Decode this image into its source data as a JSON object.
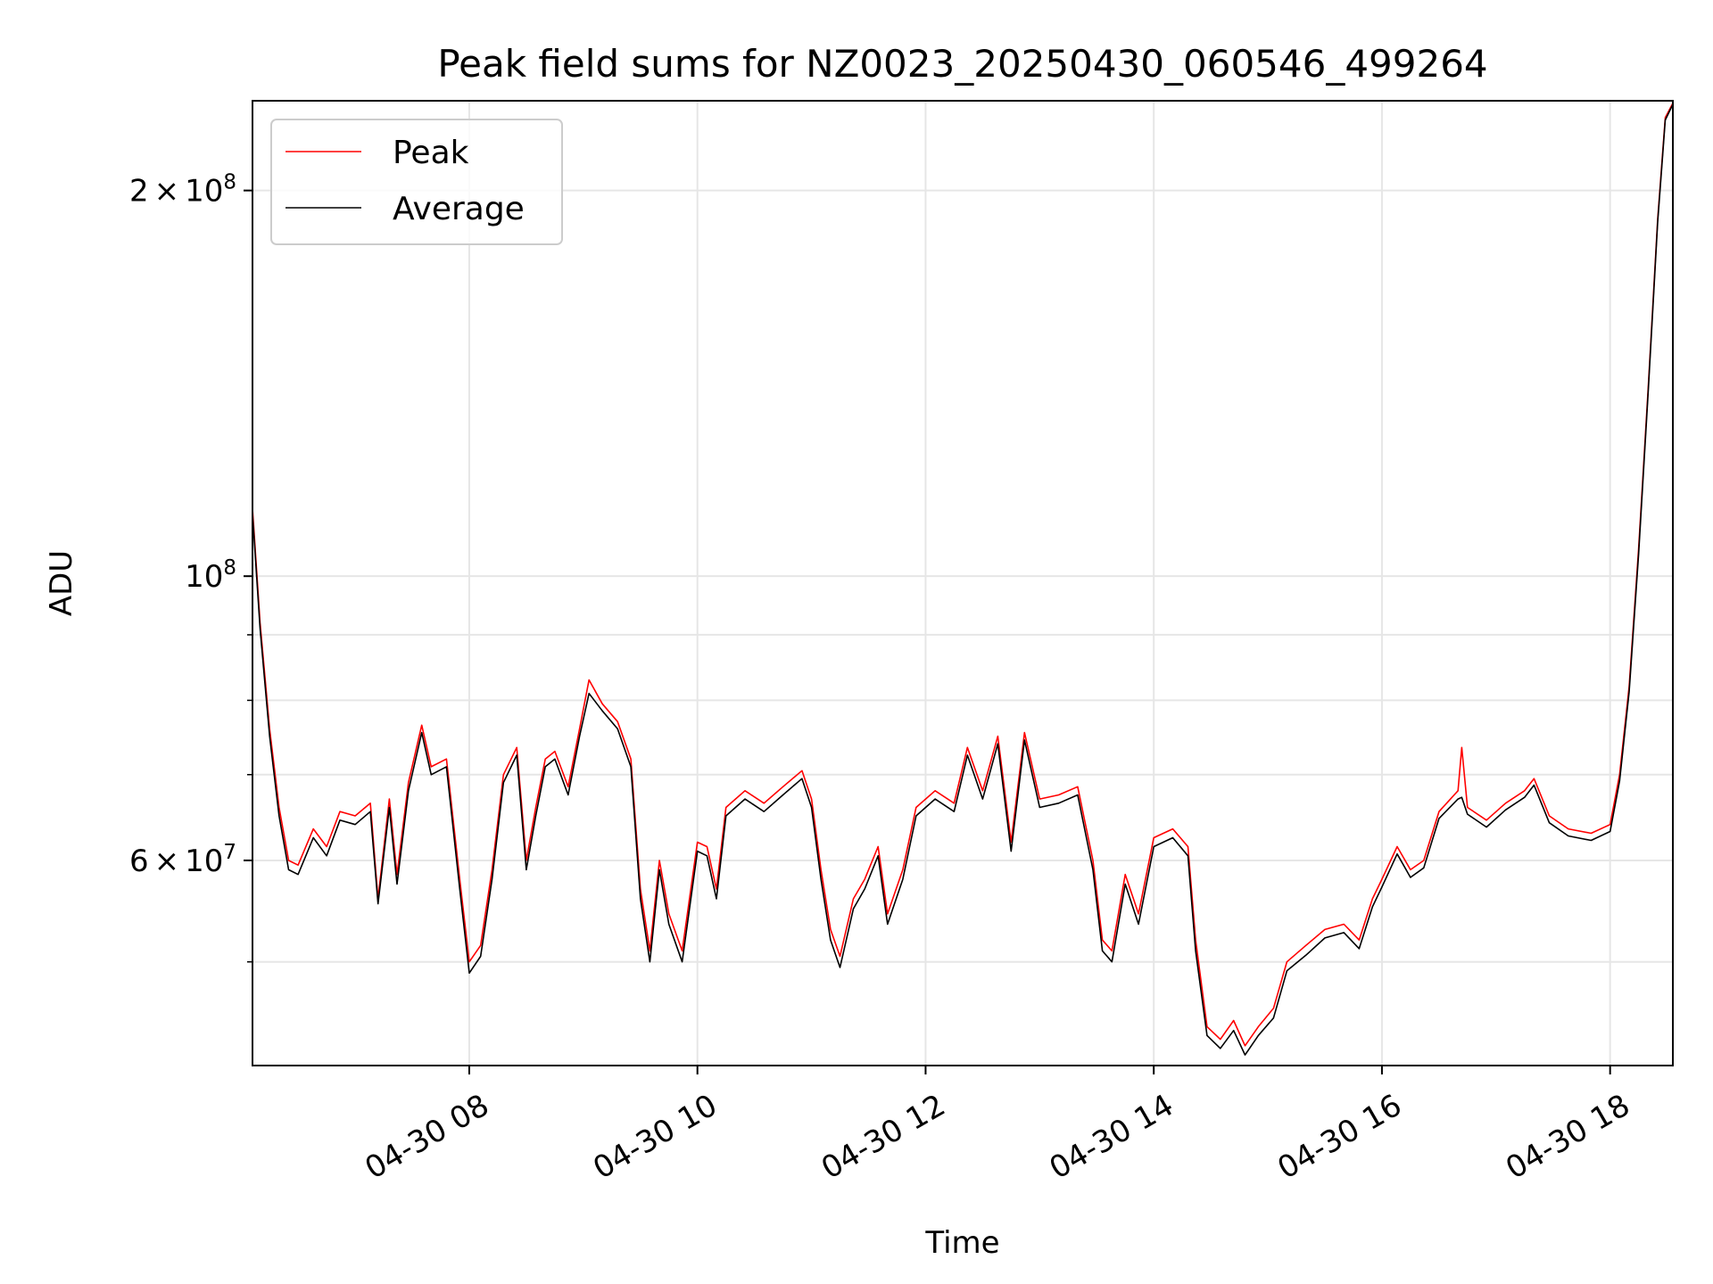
{
  "chart_data": {
    "type": "line",
    "title": "Peak field sums for NZ0023_20250430_060546_499264",
    "xlabel": "Time",
    "ylabel": "ADU",
    "yscale": "log",
    "ylim": [
      41500000,
      235000000
    ],
    "xlim": [
      "2025-04-30 06:06",
      "2025-04-30 18:33"
    ],
    "grid": true,
    "legend": "top-left",
    "x_ticks": [
      {
        "t": "2025-04-30 08:00",
        "label": "04-30 08"
      },
      {
        "t": "2025-04-30 10:00",
        "label": "04-30 10"
      },
      {
        "t": "2025-04-30 12:00",
        "label": "04-30 12"
      },
      {
        "t": "2025-04-30 14:00",
        "label": "04-30 14"
      },
      {
        "t": "2025-04-30 16:00",
        "label": "04-30 16"
      },
      {
        "t": "2025-04-30 18:00",
        "label": "04-30 18"
      }
    ],
    "y_major_ticks": [
      {
        "value": 60000000,
        "base": "6",
        "times": "×",
        "pow10": "10",
        "exp": "7"
      },
      {
        "value": 100000000,
        "base": "",
        "times": "",
        "pow10": "10",
        "exp": "8"
      },
      {
        "value": 200000000,
        "base": "2",
        "times": "×",
        "pow10": "10",
        "exp": "8"
      }
    ],
    "y_minor_ticks": [
      50000000,
      70000000,
      80000000,
      90000000
    ],
    "series": [
      {
        "name": "Peak",
        "color": "#ff0000",
        "points": [
          [
            "2025-04-30 06:06",
            113000000
          ],
          [
            "2025-04-30 06:10",
            92000000
          ],
          [
            "2025-04-30 06:15",
            76000000
          ],
          [
            "2025-04-30 06:20",
            66000000
          ],
          [
            "2025-04-30 06:25",
            60000000
          ],
          [
            "2025-04-30 06:30",
            59500000
          ],
          [
            "2025-04-30 06:38",
            63500000
          ],
          [
            "2025-04-30 06:45",
            61500000
          ],
          [
            "2025-04-30 06:52",
            65500000
          ],
          [
            "2025-04-30 07:00",
            65000000
          ],
          [
            "2025-04-30 07:08",
            66500000
          ],
          [
            "2025-04-30 07:12",
            56000000
          ],
          [
            "2025-04-30 07:18",
            67000000
          ],
          [
            "2025-04-30 07:22",
            58500000
          ],
          [
            "2025-04-30 07:28",
            69000000
          ],
          [
            "2025-04-30 07:35",
            76500000
          ],
          [
            "2025-04-30 07:40",
            71000000
          ],
          [
            "2025-04-30 07:48",
            72000000
          ],
          [
            "2025-04-30 07:55",
            58000000
          ],
          [
            "2025-04-30 08:00",
            50000000
          ],
          [
            "2025-04-30 08:06",
            51500000
          ],
          [
            "2025-04-30 08:12",
            59000000
          ],
          [
            "2025-04-30 08:18",
            70000000
          ],
          [
            "2025-04-30 08:25",
            73500000
          ],
          [
            "2025-04-30 08:30",
            60000000
          ],
          [
            "2025-04-30 08:35",
            66000000
          ],
          [
            "2025-04-30 08:40",
            72000000
          ],
          [
            "2025-04-30 08:45",
            73000000
          ],
          [
            "2025-04-30 08:52",
            68500000
          ],
          [
            "2025-04-30 08:58",
            76000000
          ],
          [
            "2025-04-30 09:03",
            83000000
          ],
          [
            "2025-04-30 09:10",
            79500000
          ],
          [
            "2025-04-30 09:18",
            77000000
          ],
          [
            "2025-04-30 09:25",
            72000000
          ],
          [
            "2025-04-30 09:30",
            57000000
          ],
          [
            "2025-04-30 09:35",
            51000000
          ],
          [
            "2025-04-30 09:40",
            60000000
          ],
          [
            "2025-04-30 09:45",
            54500000
          ],
          [
            "2025-04-30 09:52",
            51000000
          ],
          [
            "2025-04-30 10:00",
            62000000
          ],
          [
            "2025-04-30 10:05",
            61500000
          ],
          [
            "2025-04-30 10:10",
            57000000
          ],
          [
            "2025-04-30 10:15",
            66000000
          ],
          [
            "2025-04-30 10:25",
            68000000
          ],
          [
            "2025-04-30 10:35",
            66500000
          ],
          [
            "2025-04-30 10:45",
            68500000
          ],
          [
            "2025-04-30 10:55",
            70500000
          ],
          [
            "2025-04-30 11:00",
            67000000
          ],
          [
            "2025-04-30 11:05",
            59000000
          ],
          [
            "2025-04-30 11:10",
            53000000
          ],
          [
            "2025-04-30 11:15",
            50500000
          ],
          [
            "2025-04-30 11:22",
            56000000
          ],
          [
            "2025-04-30 11:28",
            58000000
          ],
          [
            "2025-04-30 11:35",
            61500000
          ],
          [
            "2025-04-30 11:40",
            54500000
          ],
          [
            "2025-04-30 11:48",
            59000000
          ],
          [
            "2025-04-30 11:55",
            66000000
          ],
          [
            "2025-04-30 12:05",
            68000000
          ],
          [
            "2025-04-30 12:15",
            66500000
          ],
          [
            "2025-04-30 12:22",
            73500000
          ],
          [
            "2025-04-30 12:30",
            68000000
          ],
          [
            "2025-04-30 12:38",
            75000000
          ],
          [
            "2025-04-30 12:45",
            62000000
          ],
          [
            "2025-04-30 12:52",
            75500000
          ],
          [
            "2025-04-30 13:00",
            67000000
          ],
          [
            "2025-04-30 13:10",
            67500000
          ],
          [
            "2025-04-30 13:20",
            68500000
          ],
          [
            "2025-04-30 13:28",
            60000000
          ],
          [
            "2025-04-30 13:33",
            52000000
          ],
          [
            "2025-04-30 13:38",
            51000000
          ],
          [
            "2025-04-30 13:45",
            58500000
          ],
          [
            "2025-04-30 13:52",
            54500000
          ],
          [
            "2025-04-30 14:00",
            62500000
          ],
          [
            "2025-04-30 14:10",
            63500000
          ],
          [
            "2025-04-30 14:18",
            61500000
          ],
          [
            "2025-04-30 14:22",
            52000000
          ],
          [
            "2025-04-30 14:28",
            44500000
          ],
          [
            "2025-04-30 14:35",
            43500000
          ],
          [
            "2025-04-30 14:42",
            45000000
          ],
          [
            "2025-04-30 14:48",
            43000000
          ],
          [
            "2025-04-30 14:55",
            44500000
          ],
          [
            "2025-04-30 15:03",
            46000000
          ],
          [
            "2025-04-30 15:10",
            50000000
          ],
          [
            "2025-04-30 15:20",
            51500000
          ],
          [
            "2025-04-30 15:30",
            53000000
          ],
          [
            "2025-04-30 15:40",
            53500000
          ],
          [
            "2025-04-30 15:48",
            52000000
          ],
          [
            "2025-04-30 15:55",
            56000000
          ],
          [
            "2025-04-30 16:00",
            58000000
          ],
          [
            "2025-04-30 16:08",
            61500000
          ],
          [
            "2025-04-30 16:15",
            59000000
          ],
          [
            "2025-04-30 16:22",
            60000000
          ],
          [
            "2025-04-30 16:30",
            65500000
          ],
          [
            "2025-04-30 16:40",
            68000000
          ],
          [
            "2025-04-30 16:42",
            73500000
          ],
          [
            "2025-04-30 16:45",
            66000000
          ],
          [
            "2025-04-30 16:55",
            64500000
          ],
          [
            "2025-04-30 17:05",
            66500000
          ],
          [
            "2025-04-30 17:15",
            68000000
          ],
          [
            "2025-04-30 17:20",
            69500000
          ],
          [
            "2025-04-30 17:28",
            65000000
          ],
          [
            "2025-04-30 17:38",
            63500000
          ],
          [
            "2025-04-30 17:50",
            63000000
          ],
          [
            "2025-04-30 18:00",
            64000000
          ],
          [
            "2025-04-30 18:05",
            70000000
          ],
          [
            "2025-04-30 18:10",
            82000000
          ],
          [
            "2025-04-30 18:15",
            105000000
          ],
          [
            "2025-04-30 18:20",
            140000000
          ],
          [
            "2025-04-30 18:25",
            190000000
          ],
          [
            "2025-04-30 18:29",
            228000000
          ],
          [
            "2025-04-30 18:33",
            234000000
          ]
        ]
      },
      {
        "name": "Average",
        "color": "#000000",
        "points": [
          [
            "2025-04-30 06:06",
            112000000
          ],
          [
            "2025-04-30 06:10",
            91000000
          ],
          [
            "2025-04-30 06:15",
            75000000
          ],
          [
            "2025-04-30 06:20",
            65000000
          ],
          [
            "2025-04-30 06:25",
            59000000
          ],
          [
            "2025-04-30 06:30",
            58500000
          ],
          [
            "2025-04-30 06:38",
            62500000
          ],
          [
            "2025-04-30 06:45",
            60500000
          ],
          [
            "2025-04-30 06:52",
            64500000
          ],
          [
            "2025-04-30 07:00",
            64000000
          ],
          [
            "2025-04-30 07:08",
            65500000
          ],
          [
            "2025-04-30 07:12",
            55500000
          ],
          [
            "2025-04-30 07:18",
            66000000
          ],
          [
            "2025-04-30 07:22",
            57500000
          ],
          [
            "2025-04-30 07:28",
            68000000
          ],
          [
            "2025-04-30 07:35",
            75500000
          ],
          [
            "2025-04-30 07:40",
            70000000
          ],
          [
            "2025-04-30 07:48",
            71000000
          ],
          [
            "2025-04-30 07:55",
            57000000
          ],
          [
            "2025-04-30 08:00",
            49000000
          ],
          [
            "2025-04-30 08:06",
            50500000
          ],
          [
            "2025-04-30 08:12",
            58000000
          ],
          [
            "2025-04-30 08:18",
            69000000
          ],
          [
            "2025-04-30 08:25",
            72500000
          ],
          [
            "2025-04-30 08:30",
            59000000
          ],
          [
            "2025-04-30 08:35",
            65000000
          ],
          [
            "2025-04-30 08:40",
            71000000
          ],
          [
            "2025-04-30 08:45",
            72000000
          ],
          [
            "2025-04-30 08:52",
            67500000
          ],
          [
            "2025-04-30 08:58",
            75000000
          ],
          [
            "2025-04-30 09:03",
            81000000
          ],
          [
            "2025-04-30 09:10",
            78500000
          ],
          [
            "2025-04-30 09:18",
            76000000
          ],
          [
            "2025-04-30 09:25",
            71000000
          ],
          [
            "2025-04-30 09:30",
            56000000
          ],
          [
            "2025-04-30 09:35",
            50000000
          ],
          [
            "2025-04-30 09:40",
            59000000
          ],
          [
            "2025-04-30 09:45",
            53500000
          ],
          [
            "2025-04-30 09:52",
            50000000
          ],
          [
            "2025-04-30 10:00",
            61000000
          ],
          [
            "2025-04-30 10:05",
            60500000
          ],
          [
            "2025-04-30 10:10",
            56000000
          ],
          [
            "2025-04-30 10:15",
            65000000
          ],
          [
            "2025-04-30 10:25",
            67000000
          ],
          [
            "2025-04-30 10:35",
            65500000
          ],
          [
            "2025-04-30 10:45",
            67500000
          ],
          [
            "2025-04-30 10:55",
            69500000
          ],
          [
            "2025-04-30 11:00",
            66000000
          ],
          [
            "2025-04-30 11:05",
            58000000
          ],
          [
            "2025-04-30 11:10",
            52000000
          ],
          [
            "2025-04-30 11:15",
            49500000
          ],
          [
            "2025-04-30 11:22",
            55000000
          ],
          [
            "2025-04-30 11:28",
            57000000
          ],
          [
            "2025-04-30 11:35",
            60500000
          ],
          [
            "2025-04-30 11:40",
            53500000
          ],
          [
            "2025-04-30 11:48",
            58000000
          ],
          [
            "2025-04-30 11:55",
            65000000
          ],
          [
            "2025-04-30 12:05",
            67000000
          ],
          [
            "2025-04-30 12:15",
            65500000
          ],
          [
            "2025-04-30 12:22",
            72500000
          ],
          [
            "2025-04-30 12:30",
            67000000
          ],
          [
            "2025-04-30 12:38",
            74000000
          ],
          [
            "2025-04-30 12:45",
            61000000
          ],
          [
            "2025-04-30 12:52",
            74500000
          ],
          [
            "2025-04-30 13:00",
            66000000
          ],
          [
            "2025-04-30 13:10",
            66500000
          ],
          [
            "2025-04-30 13:20",
            67500000
          ],
          [
            "2025-04-30 13:28",
            59000000
          ],
          [
            "2025-04-30 13:33",
            51000000
          ],
          [
            "2025-04-30 13:38",
            50000000
          ],
          [
            "2025-04-30 13:45",
            57500000
          ],
          [
            "2025-04-30 13:52",
            53500000
          ],
          [
            "2025-04-30 14:00",
            61500000
          ],
          [
            "2025-04-30 14:10",
            62500000
          ],
          [
            "2025-04-30 14:18",
            60500000
          ],
          [
            "2025-04-30 14:22",
            51000000
          ],
          [
            "2025-04-30 14:28",
            43800000
          ],
          [
            "2025-04-30 14:35",
            42800000
          ],
          [
            "2025-04-30 14:42",
            44200000
          ],
          [
            "2025-04-30 14:48",
            42300000
          ],
          [
            "2025-04-30 14:55",
            43800000
          ],
          [
            "2025-04-30 15:03",
            45200000
          ],
          [
            "2025-04-30 15:10",
            49200000
          ],
          [
            "2025-04-30 15:20",
            50600000
          ],
          [
            "2025-04-30 15:30",
            52200000
          ],
          [
            "2025-04-30 15:40",
            52700000
          ],
          [
            "2025-04-30 15:48",
            51200000
          ],
          [
            "2025-04-30 15:55",
            55200000
          ],
          [
            "2025-04-30 16:00",
            57200000
          ],
          [
            "2025-04-30 16:08",
            60700000
          ],
          [
            "2025-04-30 16:15",
            58200000
          ],
          [
            "2025-04-30 16:22",
            59200000
          ],
          [
            "2025-04-30 16:30",
            64700000
          ],
          [
            "2025-04-30 16:40",
            67000000
          ],
          [
            "2025-04-30 16:42",
            67200000
          ],
          [
            "2025-04-30 16:45",
            65200000
          ],
          [
            "2025-04-30 16:55",
            63700000
          ],
          [
            "2025-04-30 17:05",
            65700000
          ],
          [
            "2025-04-30 17:15",
            67200000
          ],
          [
            "2025-04-30 17:20",
            68700000
          ],
          [
            "2025-04-30 17:28",
            64200000
          ],
          [
            "2025-04-30 17:38",
            62700000
          ],
          [
            "2025-04-30 17:50",
            62200000
          ],
          [
            "2025-04-30 18:00",
            63200000
          ],
          [
            "2025-04-30 18:05",
            69200000
          ],
          [
            "2025-04-30 18:10",
            81200000
          ],
          [
            "2025-04-30 18:15",
            104000000
          ],
          [
            "2025-04-30 18:20",
            139000000
          ],
          [
            "2025-04-30 18:25",
            189000000
          ],
          [
            "2025-04-30 18:29",
            227000000
          ],
          [
            "2025-04-30 18:33",
            233500000
          ]
        ]
      }
    ]
  }
}
